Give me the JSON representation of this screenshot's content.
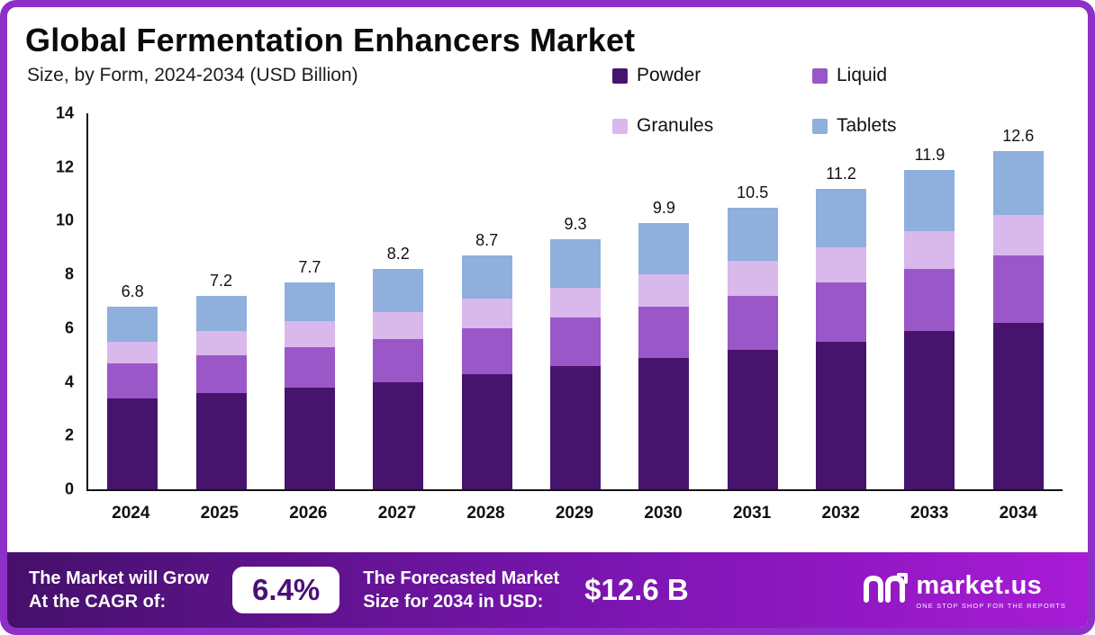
{
  "title": "Global Fermentation Enhancers Market",
  "subtitle": "Size, by Form, 2024-2034 (USD Billion)",
  "legend": {
    "items": [
      {
        "label": "Powder",
        "color": "#46146c"
      },
      {
        "label": "Liquid",
        "color": "#9a57c7"
      },
      {
        "label": "Granules",
        "color": "#d9b8ec"
      },
      {
        "label": "Tablets",
        "color": "#8fafdc"
      }
    ]
  },
  "chart_data": {
    "type": "bar",
    "stacked": true,
    "title": "Global Fermentation Enhancers Market",
    "subtitle": "Size, by Form, 2024-2034 (USD Billion)",
    "xlabel": "",
    "ylabel": "USD Billion",
    "ylim": [
      0,
      14
    ],
    "yticks": [
      0,
      2,
      4,
      6,
      8,
      10,
      12,
      14
    ],
    "grid": false,
    "legend_position": "top-right",
    "categories": [
      "2024",
      "2025",
      "2026",
      "2027",
      "2028",
      "2029",
      "2030",
      "2031",
      "2032",
      "2033",
      "2034"
    ],
    "series": [
      {
        "name": "Powder",
        "color": "#46146c",
        "values": [
          3.4,
          3.6,
          3.8,
          4.0,
          4.3,
          4.6,
          4.9,
          5.2,
          5.5,
          5.9,
          6.2
        ]
      },
      {
        "name": "Liquid",
        "color": "#9a57c7",
        "values": [
          1.3,
          1.4,
          1.5,
          1.6,
          1.7,
          1.8,
          1.9,
          2.0,
          2.2,
          2.3,
          2.5
        ]
      },
      {
        "name": "Granules",
        "color": "#d9b8ec",
        "values": [
          0.8,
          0.9,
          0.95,
          1.0,
          1.1,
          1.1,
          1.2,
          1.3,
          1.3,
          1.4,
          1.5
        ]
      },
      {
        "name": "Tablets",
        "color": "#8fafdc",
        "values": [
          1.3,
          1.3,
          1.45,
          1.6,
          1.6,
          1.8,
          1.9,
          2.0,
          2.2,
          2.3,
          2.4
        ]
      }
    ],
    "totals": [
      "6.8",
      "7.2",
      "7.7",
      "8.2",
      "8.7",
      "9.3",
      "9.9",
      "10.5",
      "11.2",
      "11.9",
      "12.6"
    ]
  },
  "footer": {
    "cagr_line1": "The Market will Grow",
    "cagr_line2": "At the CAGR of:",
    "cagr_value": "6.4%",
    "forecast_line1": "The Forecasted Market",
    "forecast_line2": "Size for 2034 in USD:",
    "forecast_value": "$12.6 B",
    "brand_name": "market.us",
    "brand_tagline": "ONE STOP SHOP FOR THE REPORTS"
  },
  "colors": {
    "border": "#8e2fc8",
    "footer_gradient_start": "#45106b",
    "footer_gradient_end": "#a81bd6",
    "powder": "#46146c",
    "liquid": "#9a57c7",
    "granules": "#d9b8ec",
    "tablets": "#8fafdc"
  }
}
